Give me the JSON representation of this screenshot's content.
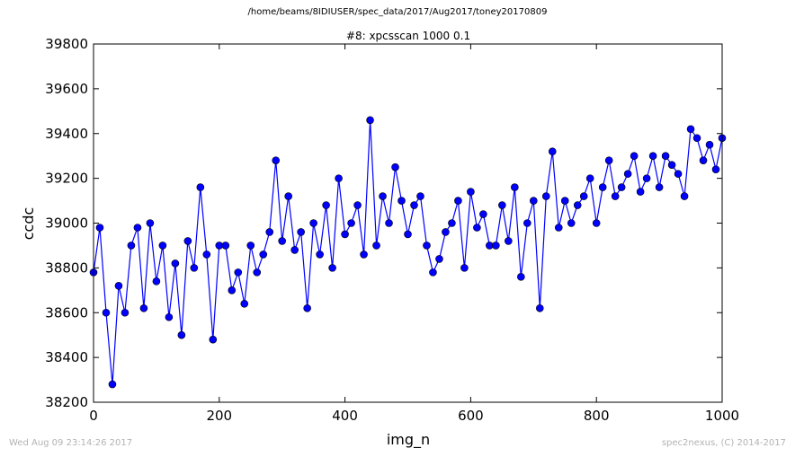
{
  "page": {
    "suptitle": "/home/beams/8IDIUSER/spec_data/2017/Aug2017/toney20170809",
    "timestamp": "Wed Aug 09 23:14:26 2017",
    "credit": "spec2nexus, (C) 2014-2017"
  },
  "chart_data": {
    "type": "line",
    "title": "#8: xpcsscan 1000 0.1",
    "xlabel": "img_n",
    "ylabel": "ccdc",
    "xlim": [
      0,
      1000
    ],
    "ylim": [
      38200,
      39800
    ],
    "xticks": [
      0,
      200,
      400,
      600,
      800,
      1000
    ],
    "yticks": [
      38200,
      38400,
      38600,
      38800,
      39000,
      39200,
      39400,
      39600,
      39800
    ],
    "grid": false,
    "legend": "none",
    "color": "#0000ff",
    "marker": "circle",
    "series": [
      {
        "x": [
          0,
          10,
          20,
          30,
          40,
          50,
          60,
          70,
          80,
          90,
          100,
          110,
          120,
          130,
          140,
          150,
          160,
          170,
          180,
          190,
          200,
          210,
          220,
          230,
          240,
          250,
          260,
          270,
          280,
          290,
          300,
          310,
          320,
          330,
          340,
          350,
          360,
          370,
          380,
          390,
          400,
          410,
          420,
          430,
          440,
          450,
          460,
          470,
          480,
          490,
          500,
          510,
          520,
          530,
          540,
          550,
          560,
          570,
          580,
          590,
          600,
          610,
          620,
          630,
          640,
          650,
          660,
          670,
          680,
          690,
          700,
          710,
          720,
          730,
          740,
          750,
          760,
          770,
          780,
          790,
          800,
          810,
          820,
          830,
          840,
          850,
          860,
          870,
          880,
          890,
          900,
          910,
          920,
          930,
          940,
          950,
          960,
          970,
          980,
          990,
          1000
        ],
        "y": [
          38780,
          38980,
          38600,
          38280,
          38720,
          38600,
          38900,
          38980,
          38620,
          39000,
          38740,
          38900,
          38580,
          38820,
          38500,
          38920,
          38800,
          39160,
          38860,
          38480,
          38900,
          38900,
          38700,
          38780,
          38640,
          38900,
          38780,
          38860,
          38960,
          39280,
          38920,
          39120,
          38880,
          38960,
          38620,
          39000,
          38860,
          39080,
          38800,
          39200,
          38950,
          39000,
          39080,
          38860,
          39460,
          38900,
          39120,
          39000,
          39250,
          39100,
          38950,
          39080,
          39120,
          38900,
          38780,
          38840,
          38960,
          39000,
          39100,
          38800,
          39140,
          38980,
          39040,
          38900,
          38900,
          39080,
          38920,
          39160,
          38760,
          39000,
          39100,
          38620,
          39120,
          39320,
          38980,
          39100,
          39000,
          39080,
          39120,
          39200,
          39000,
          39160,
          39280,
          39120,
          39160,
          39220,
          39300,
          39140,
          39200,
          39300,
          39160,
          39300,
          39260,
          39220,
          39120,
          39420,
          39380,
          39280,
          39350,
          39240,
          39380
        ]
      }
    ]
  }
}
